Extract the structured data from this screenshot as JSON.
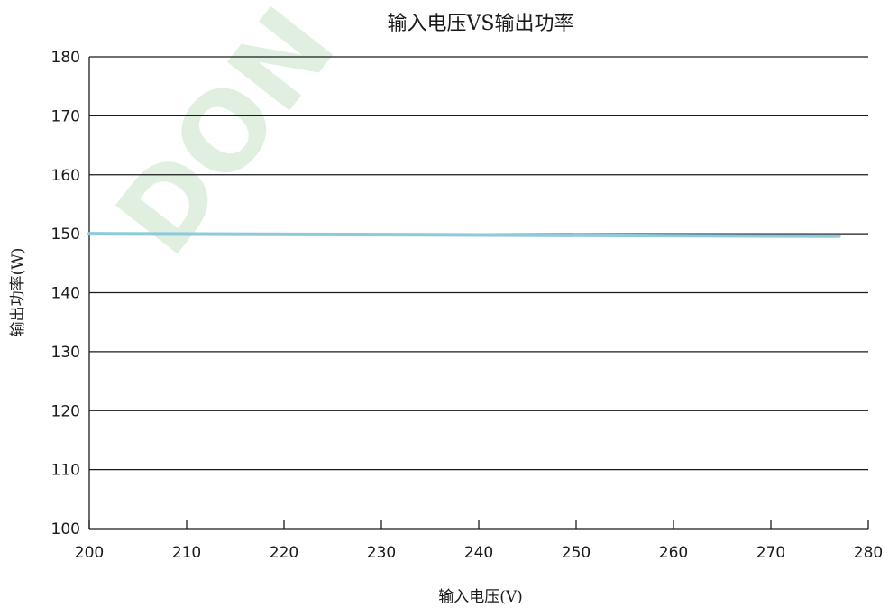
{
  "chart_data": {
    "type": "line",
    "title": "输入电压VS输出功率",
    "xlabel": "输入电压(V)",
    "ylabel": "输出功率(W)",
    "xlim": [
      200,
      280
    ],
    "ylim": [
      100,
      180
    ],
    "xticks": [
      200,
      210,
      220,
      230,
      240,
      250,
      260,
      270,
      280
    ],
    "yticks": [
      100,
      110,
      120,
      130,
      140,
      150,
      160,
      170,
      180
    ],
    "grid": "horizontal",
    "legend": "none",
    "series": [
      {
        "color": "#8ec9dc",
        "x": [
          200,
          277
        ],
        "y": [
          150,
          149.6
        ]
      }
    ]
  },
  "watermark": {
    "text": "DON",
    "color": "#d6ead6"
  }
}
